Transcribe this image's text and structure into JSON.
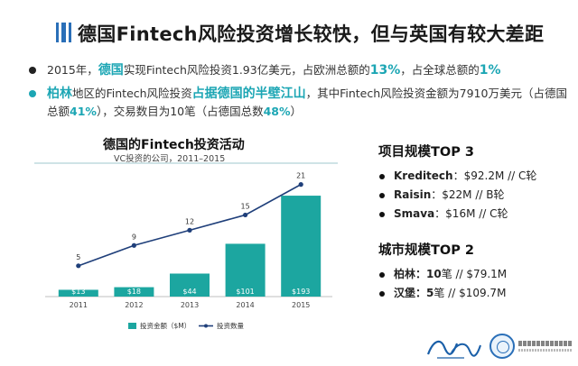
{
  "slide": {
    "title": "德国Fintech风险投资增长较快，但与英国有较大差距"
  },
  "bullets": [
    {
      "id": "b1",
      "parts": [
        {
          "t": "2015年，",
          "s": "n"
        },
        {
          "t": "德国",
          "s": "hl-big"
        },
        {
          "t": "实现Fintech风险投资1.93亿美元，占欧洲总额的",
          "s": "n"
        },
        {
          "t": "13%",
          "s": "hl-big"
        },
        {
          "t": "，占全球总额的",
          "s": "n"
        },
        {
          "t": "1%",
          "s": "hl-big"
        }
      ]
    },
    {
      "id": "b2",
      "parts": [
        {
          "t": "柏林",
          "s": "hl-big"
        },
        {
          "t": "地区的Fintech风险投资",
          "s": "n"
        },
        {
          "t": "占据德国的半壁江山",
          "s": "hl-big"
        },
        {
          "t": "，其中Fintech风险投资金额为7910万美元（占德国总额",
          "s": "n"
        },
        {
          "t": "41%",
          "s": "hl"
        },
        {
          "t": "），交易数目为10笔（占德国总数",
          "s": "n"
        },
        {
          "t": "48%",
          "s": "hl"
        },
        {
          "t": "）",
          "s": "n"
        }
      ]
    }
  ],
  "chart_data": {
    "type": "bar+line",
    "title": "德国的Fintech投资活动",
    "subtitle": "VC投资的公司，2011–2015",
    "categories": [
      "2011",
      "2012",
      "2013",
      "2014",
      "2015"
    ],
    "series": [
      {
        "name": "投资金额（$M）",
        "type": "bar",
        "values": [
          13,
          18,
          44,
          101,
          193
        ],
        "labels": [
          "$13",
          "$18",
          "$44",
          "$101",
          "$193"
        ],
        "color": "#1ca6a0"
      },
      {
        "name": "投资数量",
        "type": "line",
        "values": [
          5,
          9,
          12,
          15,
          21
        ],
        "labels": [
          "5",
          "9",
          "12",
          "15",
          "21"
        ],
        "color": "#1f3f7a"
      }
    ],
    "legend": "bottom",
    "grid": false
  },
  "side": {
    "projects_title": "项目规模TOP 3",
    "projects": [
      {
        "name": "Kreditech",
        "detail": "：$92.2M // C轮"
      },
      {
        "name": "Raisin",
        "detail": "：$22M // B轮"
      },
      {
        "name": "Smava",
        "detail": "：$16M // C轮"
      }
    ],
    "cities_title": "城市规模TOP 2",
    "cities": [
      {
        "name": "柏林：10",
        "detail": "笔 // $79.1M"
      },
      {
        "name": "汉堡：5",
        "detail": "笔 // $109.7M"
      }
    ]
  },
  "colors": {
    "accent": "#1ca6b4",
    "title_bar": "#2a6fb8",
    "bar": "#1ca6a0",
    "line": "#1f3f7a"
  }
}
